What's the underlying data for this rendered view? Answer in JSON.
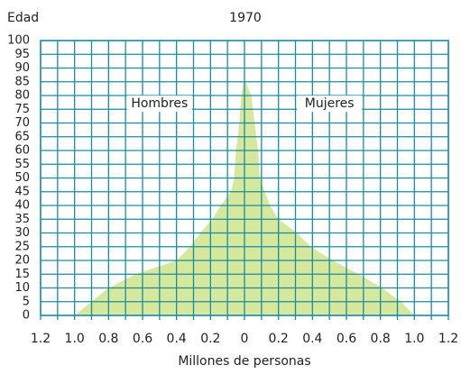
{
  "chart_data": {
    "type": "pyramid",
    "title": "1970",
    "ylabel": "Edad",
    "xlabel": "Millones de personas",
    "ages": [
      0,
      5,
      10,
      15,
      20,
      25,
      30,
      35,
      40,
      45,
      50,
      55,
      60,
      65,
      70,
      75,
      80,
      86
    ],
    "series": [
      {
        "name": "Hombres",
        "side": "left",
        "color": "#d5e89c",
        "values": [
          1.0,
          0.9,
          0.8,
          0.64,
          0.4,
          0.32,
          0.26,
          0.19,
          0.14,
          0.08,
          0.06,
          0.055,
          0.05,
          0.04,
          0.03,
          0.025,
          0.02,
          0
        ]
      },
      {
        "name": "Mujeres",
        "side": "right",
        "color": "#d5e89c",
        "values": [
          1.0,
          0.92,
          0.81,
          0.67,
          0.52,
          0.39,
          0.31,
          0.2,
          0.15,
          0.12,
          0.09,
          0.085,
          0.08,
          0.07,
          0.06,
          0.05,
          0.04,
          0
        ]
      }
    ],
    "xlim": [
      -1.2,
      1.2
    ],
    "xticks": [
      {
        "value": -1.2,
        "label": "1.2"
      },
      {
        "value": -1.0,
        "label": "1.0"
      },
      {
        "value": -0.8,
        "label": "0.8"
      },
      {
        "value": -0.6,
        "label": "0.6"
      },
      {
        "value": -0.4,
        "label": "0.4"
      },
      {
        "value": -0.2,
        "label": "0.2"
      },
      0,
      0.2,
      0.4,
      0.6,
      0.8,
      {
        "value": 1.0,
        "label": "1.0"
      },
      1.2
    ],
    "xminorticks": [
      -1.1,
      -0.9,
      -0.7,
      -0.5,
      -0.3,
      -0.1,
      0.1,
      0.3,
      0.5,
      0.7,
      0.9,
      1.1
    ],
    "ylim": [
      0,
      100
    ],
    "yticks": [
      0,
      5,
      10,
      15,
      20,
      25,
      30,
      35,
      40,
      45,
      50,
      55,
      60,
      65,
      70,
      75,
      80,
      85,
      90,
      95,
      100
    ],
    "grid": true,
    "grid_color": "#1a8ca0"
  }
}
